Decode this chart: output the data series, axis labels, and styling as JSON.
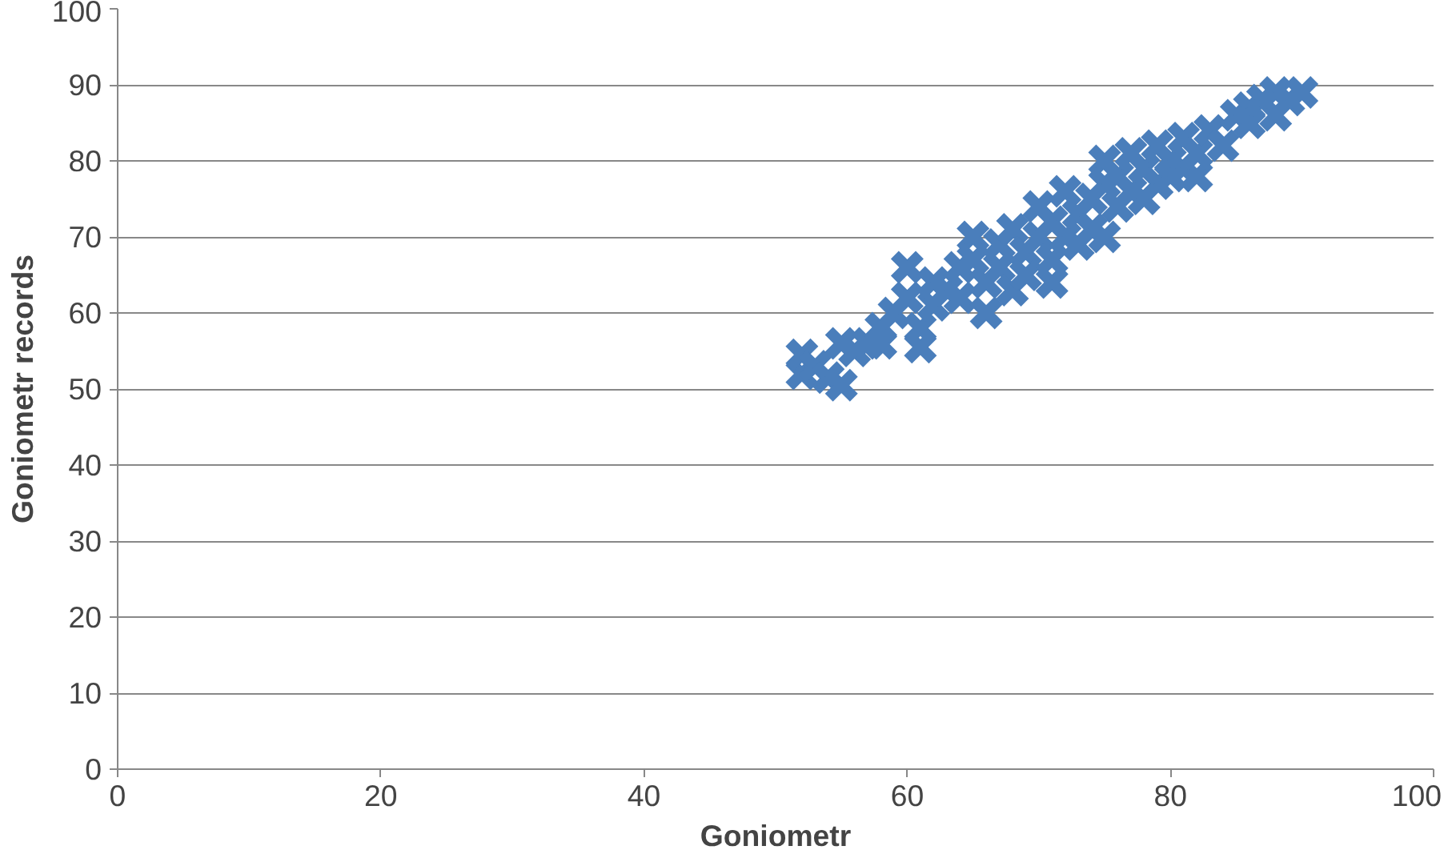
{
  "chart_data": {
    "type": "scatter",
    "xlabel": "Goniometr",
    "ylabel": "Goniometr records",
    "marker": "cross",
    "grid": "y",
    "xlim": [
      0,
      100
    ],
    "xticks": [
      0,
      20,
      40,
      60,
      80,
      100
    ],
    "ylim": [
      0,
      100
    ],
    "yticks": [
      0,
      10,
      20,
      30,
      40,
      50,
      60,
      70,
      80,
      90,
      100
    ],
    "series": [
      {
        "color": "#4a7ebb",
        "x": [
          52,
          52,
          53,
          54,
          55,
          55,
          56,
          57,
          58,
          58,
          59,
          60,
          60,
          61,
          61,
          62,
          62,
          63,
          64,
          64,
          65,
          65,
          66,
          66,
          67,
          67,
          68,
          68,
          69,
          69,
          70,
          70,
          71,
          71,
          71,
          72,
          72,
          73,
          73,
          74,
          74,
          75,
          75,
          75,
          76,
          76,
          77,
          77,
          78,
          78,
          79,
          79,
          80,
          80,
          81,
          81,
          82,
          82,
          83,
          84,
          85,
          86,
          86,
          87,
          88,
          88,
          89,
          90
        ],
        "values": [
          52,
          54.5,
          53,
          51.5,
          50.5,
          56,
          55,
          56,
          58,
          56,
          60,
          62,
          66,
          58,
          55.5,
          61,
          64,
          63,
          66,
          62,
          70,
          67,
          60,
          64,
          66,
          69,
          63,
          71,
          68,
          65,
          74,
          70,
          64,
          67,
          72,
          76,
          70,
          73,
          69,
          75,
          71,
          80,
          70,
          77,
          74,
          78,
          81,
          76,
          79,
          75,
          82,
          77,
          80,
          78,
          83,
          79,
          78,
          81,
          84,
          82,
          86,
          85,
          87,
          88,
          86,
          89,
          88,
          89
        ]
      }
    ]
  }
}
